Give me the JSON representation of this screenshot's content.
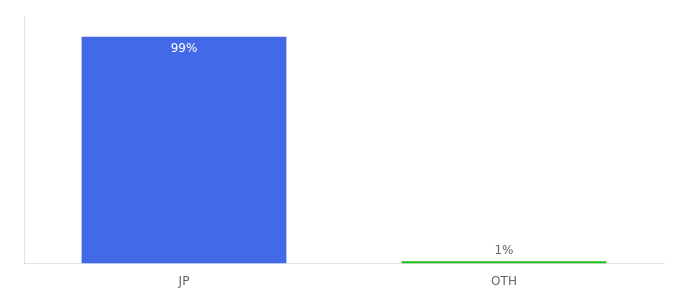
{
  "chart_data": {
    "type": "bar",
    "categories": [
      "JP",
      "OTH"
    ],
    "values": [
      99,
      1
    ],
    "value_labels": [
      "99%",
      "1%"
    ],
    "colors": [
      "#4169e8",
      "#22bb22"
    ],
    "ylim": [
      0,
      108
    ],
    "grid": false,
    "tick_labels": "x",
    "data_labels": true
  }
}
